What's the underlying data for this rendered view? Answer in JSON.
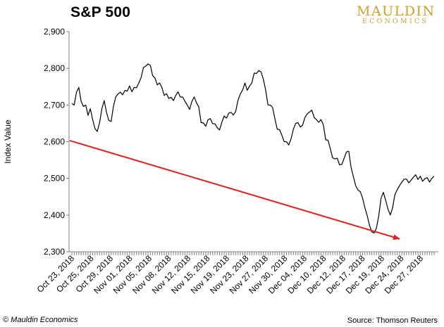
{
  "title": "S&P 500",
  "logo": {
    "top": "MAULDIN",
    "bottom": "ECONOMICS"
  },
  "footer": {
    "left": "© Mauldin Economics",
    "right": "Source: Thomson Reuters"
  },
  "chart_data": {
    "type": "line",
    "title": "S&P 500",
    "ylabel": "Index Value",
    "xlabel": "",
    "ylim": [
      2300,
      2900
    ],
    "yticks": [
      2300,
      2400,
      2500,
      2600,
      2700,
      2800,
      2900
    ],
    "ytick_labels": [
      "2,300",
      "2,400",
      "2,500",
      "2,600",
      "2,700",
      "2,800",
      "2,900"
    ],
    "x_tick_labels": [
      "Oct 23, 2018",
      "Oct 25, 2018",
      "Oct 29, 2018",
      "Nov 01, 2018",
      "Nov 05, 2018",
      "Nov 08, 2018",
      "Nov 12, 2018",
      "Nov 15, 2018",
      "Nov 19, 2018",
      "Nov 23, 2018",
      "Nov 27, 2018",
      "Nov 30, 2018",
      "Dec 04, 2018",
      "Dec 10, 2018",
      "Dec 12, 2018",
      "Dec 17, 2018",
      "Dec 19, 2018",
      "Dec 24, 2018",
      "Dec 27, 2018"
    ],
    "grid": false,
    "series": [
      {
        "color": "#000000",
        "values": [
          2704,
          2700,
          2735,
          2748,
          2710,
          2696,
          2700,
          2672,
          2690,
          2660,
          2636,
          2628,
          2652,
          2690,
          2712,
          2680,
          2658,
          2655,
          2696,
          2722,
          2730,
          2735,
          2728,
          2740,
          2738,
          2752,
          2736,
          2748,
          2747,
          2760,
          2775,
          2802,
          2806,
          2812,
          2808,
          2780,
          2774,
          2755,
          2760,
          2748,
          2726,
          2731,
          2718,
          2721,
          2712,
          2726,
          2736,
          2722,
          2722,
          2710,
          2700,
          2688,
          2710,
          2722,
          2706,
          2695,
          2652,
          2651,
          2642,
          2660,
          2663,
          2649,
          2649,
          2638,
          2632,
          2653,
          2670,
          2664,
          2678,
          2680,
          2673,
          2683,
          2713,
          2730,
          2741,
          2760,
          2740,
          2752,
          2760,
          2787,
          2786,
          2794,
          2790,
          2770,
          2740,
          2700,
          2700,
          2693,
          2662,
          2634,
          2633,
          2618,
          2600,
          2600,
          2591,
          2608,
          2634,
          2650,
          2652,
          2640,
          2645,
          2666,
          2676,
          2681,
          2686,
          2666,
          2660,
          2653,
          2660,
          2646,
          2605,
          2604,
          2581,
          2556,
          2553,
          2555,
          2537,
          2538,
          2555,
          2572,
          2574,
          2530,
          2505,
          2480,
          2468,
          2464,
          2446,
          2420,
          2398,
          2372,
          2354,
          2351,
          2365,
          2398,
          2446,
          2462,
          2440,
          2416,
          2400,
          2420,
          2456,
          2469,
          2480,
          2490,
          2498,
          2498,
          2488,
          2495,
          2503,
          2510,
          2497,
          2506,
          2492,
          2499,
          2502,
          2490,
          2500,
          2506
        ]
      }
    ],
    "annotations": [
      {
        "type": "arrow",
        "color": "#e3201b",
        "from": {
          "x": "Oct 23, 2018",
          "y": 2603
        },
        "to": {
          "x": "Dec 24, 2018",
          "y": 2335
        }
      }
    ]
  }
}
